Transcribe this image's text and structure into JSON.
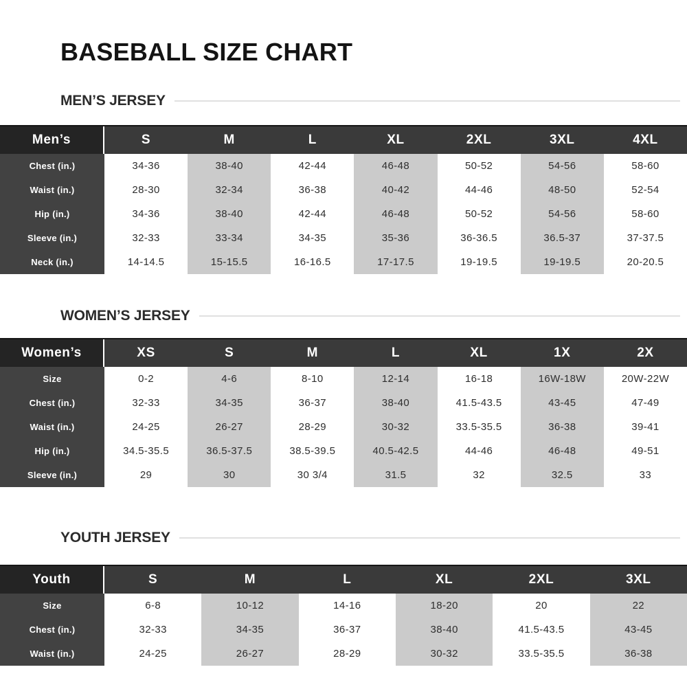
{
  "page": {
    "title": "BASEBALL SIZE CHART"
  },
  "colors": {
    "corner_cell_bg": "#242424",
    "header_row_bg": "#3a3a3a",
    "row_label_bg": "#424242",
    "shaded_column_bg": "#cbcbcb",
    "plain_column_bg": "#ffffff",
    "heading_text": "#141414",
    "section_heading_text": "#2b2b2b",
    "cell_text": "#2e2e2e",
    "rule_line": "#e0e0e0"
  },
  "sections": [
    {
      "heading": "MEN’S JERSEY",
      "table": {
        "corner": "Men’s",
        "columns": [
          "S",
          "M",
          "L",
          "XL",
          "2XL",
          "3XL",
          "4XL"
        ],
        "rows": [
          {
            "label": "Chest (in.)",
            "values": [
              "34-36",
              "38-40",
              "42-44",
              "46-48",
              "50-52",
              "54-56",
              "58-60"
            ]
          },
          {
            "label": "Waist (in.)",
            "values": [
              "28-30",
              "32-34",
              "36-38",
              "40-42",
              "44-46",
              "48-50",
              "52-54"
            ]
          },
          {
            "label": "Hip (in.)",
            "values": [
              "34-36",
              "38-40",
              "42-44",
              "46-48",
              "50-52",
              "54-56",
              "58-60"
            ]
          },
          {
            "label": "Sleeve (in.)",
            "values": [
              "32-33",
              "33-34",
              "34-35",
              "35-36",
              "36-36.5",
              "36.5-37",
              "37-37.5"
            ]
          },
          {
            "label": "Neck (in.)",
            "values": [
              "14-14.5",
              "15-15.5",
              "16-16.5",
              "17-17.5",
              "19-19.5",
              "19-19.5",
              "20-20.5"
            ]
          }
        ]
      }
    },
    {
      "heading": "WOMEN’S JERSEY",
      "table": {
        "corner": "Women’s",
        "columns": [
          "XS",
          "S",
          "M",
          "L",
          "XL",
          "1X",
          "2X"
        ],
        "rows": [
          {
            "label": "Size",
            "values": [
              "0-2",
              "4-6",
              "8-10",
              "12-14",
              "16-18",
              "16W-18W",
              "20W-22W"
            ]
          },
          {
            "label": "Chest (in.)",
            "values": [
              "32-33",
              "34-35",
              "36-37",
              "38-40",
              "41.5-43.5",
              "43-45",
              "47-49"
            ]
          },
          {
            "label": "Waist (in.)",
            "values": [
              "24-25",
              "26-27",
              "28-29",
              "30-32",
              "33.5-35.5",
              "36-38",
              "39-41"
            ]
          },
          {
            "label": "Hip (in.)",
            "values": [
              "34.5-35.5",
              "36.5-37.5",
              "38.5-39.5",
              "40.5-42.5",
              "44-46",
              "46-48",
              "49-51"
            ]
          },
          {
            "label": "Sleeve (in.)",
            "values": [
              "29",
              "30",
              "30 3/4",
              "31.5",
              "32",
              "32.5",
              "33"
            ]
          }
        ]
      }
    },
    {
      "heading": "YOUTH JERSEY",
      "table": {
        "corner": "Youth",
        "columns": [
          "S",
          "M",
          "L",
          "XL",
          "2XL",
          "3XL"
        ],
        "rows": [
          {
            "label": "Size",
            "values": [
              "6-8",
              "10-12",
              "14-16",
              "18-20",
              "20",
              "22"
            ]
          },
          {
            "label": "Chest (in.)",
            "values": [
              "32-33",
              "34-35",
              "36-37",
              "38-40",
              "41.5-43.5",
              "43-45"
            ]
          },
          {
            "label": "Waist (in.)",
            "values": [
              "24-25",
              "26-27",
              "28-29",
              "30-32",
              "33.5-35.5",
              "36-38"
            ]
          }
        ]
      }
    }
  ]
}
